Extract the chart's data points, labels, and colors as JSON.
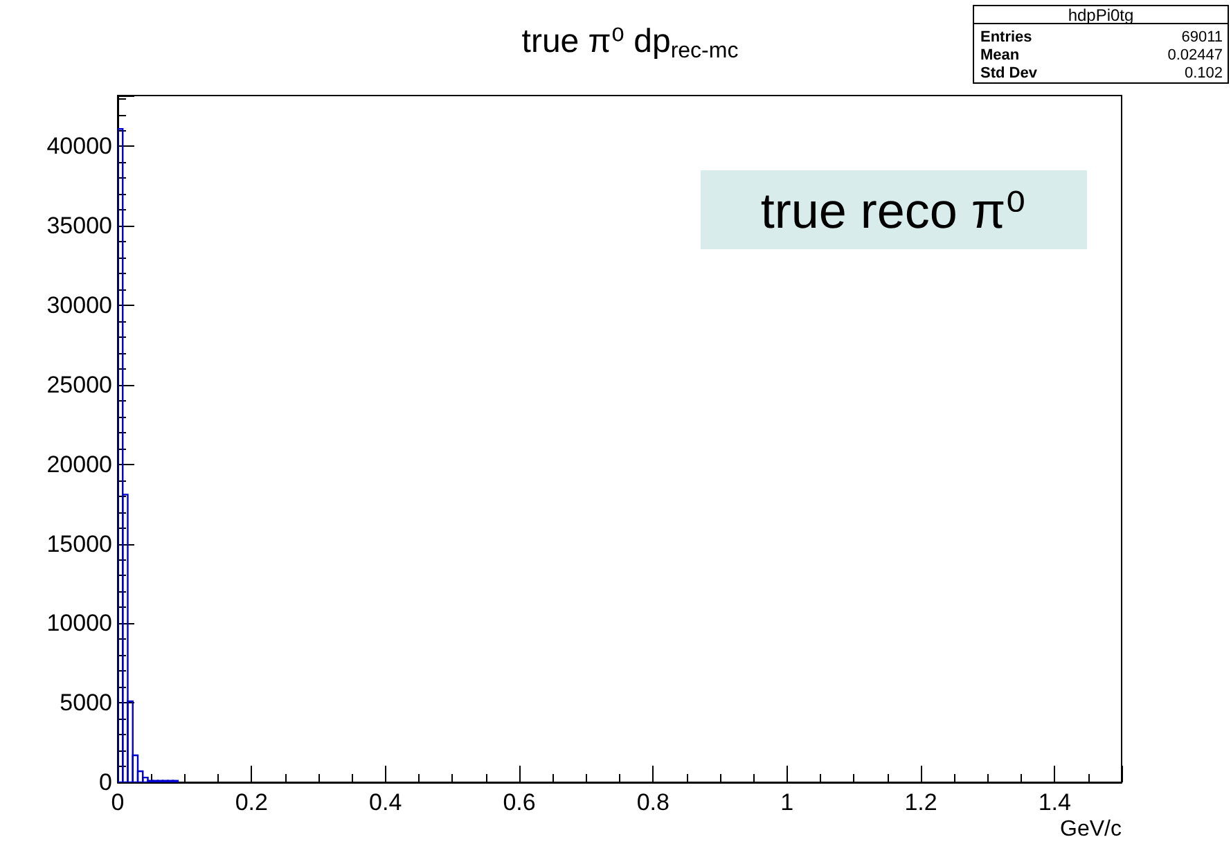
{
  "chart_data": {
    "type": "histogram",
    "title": "true π⁰ dp$_{rec-mc}$",
    "xlabel": "GeV/c",
    "bins": [
      0,
      0.0075,
      0.015,
      0.0225,
      0.03,
      0.0375,
      0.045,
      0.0525,
      0.06,
      0.0675,
      0.075,
      0.0825,
      0.09
    ],
    "values": [
      41100,
      18100,
      5100,
      1700,
      700,
      300,
      100,
      100,
      100,
      100,
      100,
      100
    ],
    "color": "#0000cc",
    "xlim": [
      0,
      1.5
    ],
    "xticks": [
      0,
      0.2,
      0.4,
      0.6,
      0.8,
      1,
      1.2,
      1.4
    ],
    "ylim": [
      0,
      43200
    ],
    "yticks": [
      0,
      5000,
      10000,
      15000,
      20000,
      25000,
      30000,
      35000,
      40000
    ],
    "annotations": [
      "hdpPi0tg",
      "Entries",
      "69011",
      "Mean",
      "0.02447",
      "Std Dev",
      "0.102",
      "true reco π⁰"
    ]
  }
}
